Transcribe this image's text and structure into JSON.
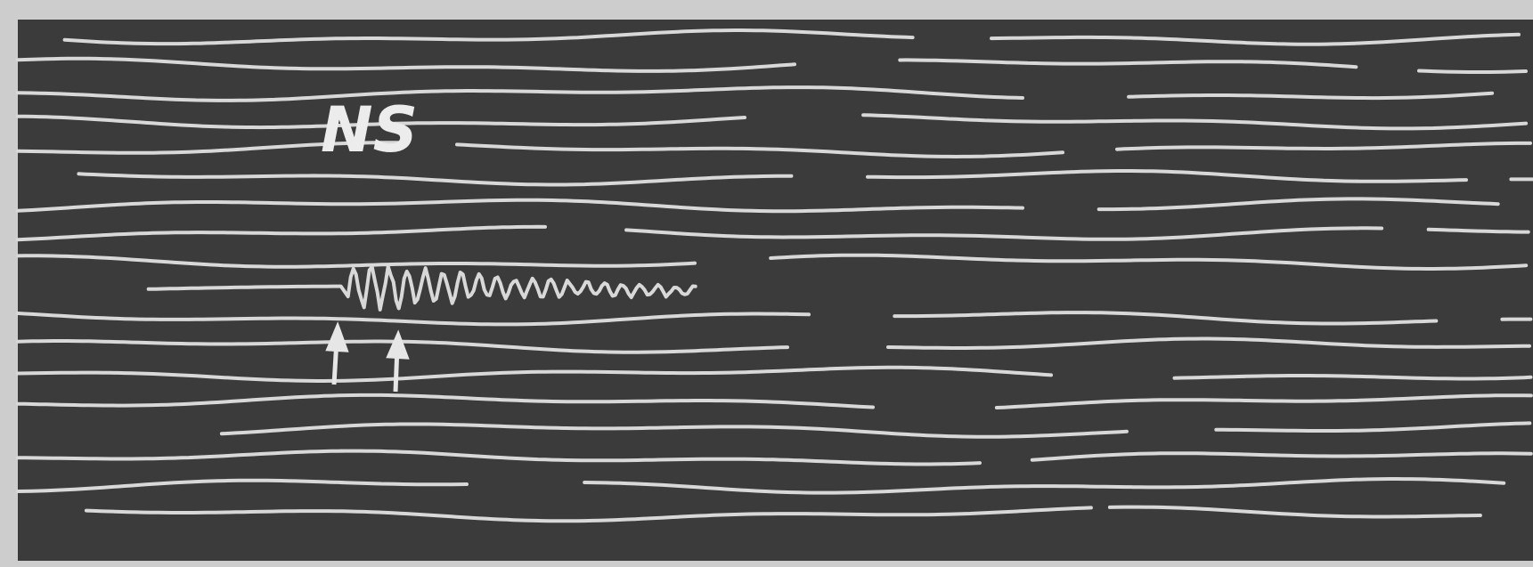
{
  "label": "NS"
}
